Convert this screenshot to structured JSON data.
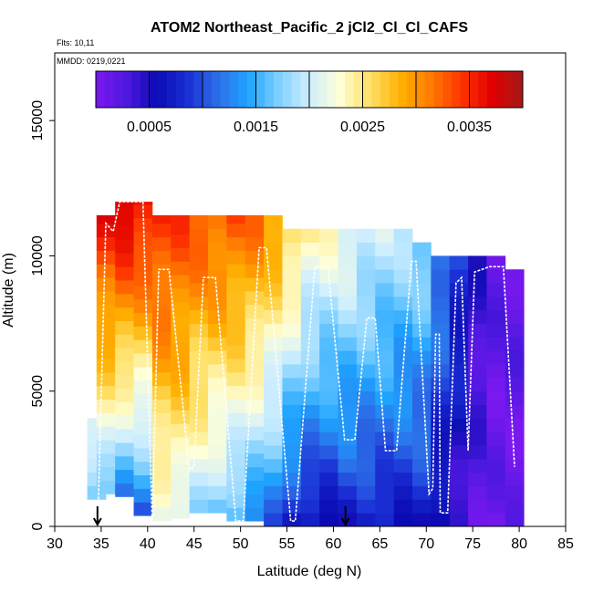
{
  "chart_data": {
    "type": "heatmap",
    "title": "ATOM2 Northeast_Pacific_2 jCl2_Cl_Cl_CAFS",
    "flights_label": "Flts: 10,11",
    "mmdd_label": "MMDD: 0219,0221",
    "xlabel": "Latitude (deg N)",
    "ylabel": "Altitude (m)",
    "xlim": [
      30,
      85
    ],
    "ylim": [
      0,
      17500
    ],
    "x_ticks": [
      "30",
      "35",
      "40",
      "45",
      "50",
      "55",
      "60",
      "65",
      "70",
      "75",
      "80",
      "85"
    ],
    "y_ticks": [
      "0",
      "5000",
      "10000",
      "15000"
    ],
    "colorbar": {
      "min": 0.0,
      "max": 0.004,
      "tick_labels": [
        "0.0005",
        "0.0015",
        "0.0025",
        "0.0035"
      ],
      "tick_values": [
        0.0005,
        0.0015,
        0.0025,
        0.0035
      ],
      "colors": [
        "#7b18f0",
        "#4f18e0",
        "#0b0bb4",
        "#1a2fd4",
        "#2c6ee8",
        "#1ea4ff",
        "#7fd0ff",
        "#cfeeff",
        "#ffffd6",
        "#ffe066",
        "#ffb000",
        "#ff7a00",
        "#ff3300",
        "#e00000",
        "#a41818"
      ]
    },
    "columns": [
      {
        "lat": 34.5,
        "bottom": 1000,
        "top": 4000,
        "low": 0.0015,
        "high": 0.0022
      },
      {
        "lat": 35.5,
        "bottom": 1200,
        "top": 11500,
        "low": 0.0016,
        "high": 0.0036
      },
      {
        "lat": 37.5,
        "bottom": 1100,
        "top": 12000,
        "low": 0.0012,
        "high": 0.0038
      },
      {
        "lat": 39.5,
        "bottom": 400,
        "top": 12000,
        "low": 0.001,
        "high": 0.0037
      },
      {
        "lat": 41.5,
        "bottom": 200,
        "top": 11500,
        "low": 0.002,
        "high": 0.0035
      },
      {
        "lat": 43.5,
        "bottom": 300,
        "top": 11500,
        "low": 0.002,
        "high": 0.0034
      },
      {
        "lat": 45.5,
        "bottom": 500,
        "top": 11500,
        "low": 0.0018,
        "high": 0.0033
      },
      {
        "lat": 47.5,
        "bottom": 500,
        "top": 11500,
        "low": 0.0016,
        "high": 0.0033
      },
      {
        "lat": 49.5,
        "bottom": 200,
        "top": 11500,
        "low": 0.0014,
        "high": 0.0033
      },
      {
        "lat": 51.5,
        "bottom": 200,
        "top": 11500,
        "low": 0.0012,
        "high": 0.0032
      },
      {
        "lat": 53.5,
        "bottom": 0,
        "top": 11500,
        "low": 0.001,
        "high": 0.003
      },
      {
        "lat": 55.5,
        "bottom": 0,
        "top": 11000,
        "low": 0.0006,
        "high": 0.0027
      },
      {
        "lat": 57.5,
        "bottom": 0,
        "top": 11000,
        "low": 0.0005,
        "high": 0.0024
      },
      {
        "lat": 59.5,
        "bottom": 0,
        "top": 11000,
        "low": 0.0005,
        "high": 0.0023
      },
      {
        "lat": 61.5,
        "bottom": 0,
        "top": 11000,
        "low": 0.0006,
        "high": 0.0022
      },
      {
        "lat": 63.5,
        "bottom": 0,
        "top": 11000,
        "low": 0.0006,
        "high": 0.0021
      },
      {
        "lat": 65.5,
        "bottom": 0,
        "top": 11000,
        "low": 0.0006,
        "high": 0.002
      },
      {
        "lat": 67.5,
        "bottom": 0,
        "top": 11000,
        "low": 0.0006,
        "high": 0.0019
      },
      {
        "lat": 69.5,
        "bottom": 0,
        "top": 10500,
        "low": 0.0006,
        "high": 0.0018
      },
      {
        "lat": 71.5,
        "bottom": 0,
        "top": 10000,
        "low": 0.0004,
        "high": 0.0013
      },
      {
        "lat": 73.5,
        "bottom": 0,
        "top": 10000,
        "low": 0.0003,
        "high": 0.0009
      },
      {
        "lat": 75.5,
        "bottom": 0,
        "top": 10000,
        "low": 0.0002,
        "high": 0.0004
      },
      {
        "lat": 77.5,
        "bottom": 0,
        "top": 10000,
        "low": 0.0001,
        "high": 0.0002
      },
      {
        "lat": 79.5,
        "bottom": 0,
        "top": 9500,
        "low": 0.0001,
        "high": 0.0002
      }
    ],
    "flight_track": [
      [
        34.7,
        1000
      ],
      [
        35.5,
        11200
      ],
      [
        36.3,
        10900
      ],
      [
        37.0,
        12000
      ],
      [
        39.5,
        12000
      ],
      [
        40.5,
        200
      ],
      [
        41.2,
        9500
      ],
      [
        42.3,
        9500
      ],
      [
        44.5,
        2100
      ],
      [
        45.0,
        2200
      ],
      [
        46.0,
        9200
      ],
      [
        47.3,
        9200
      ],
      [
        49.5,
        200
      ],
      [
        50.3,
        200
      ],
      [
        52.0,
        10300
      ],
      [
        52.8,
        10300
      ],
      [
        55.4,
        200
      ],
      [
        55.9,
        200
      ],
      [
        58.0,
        9600
      ],
      [
        59.4,
        9600
      ],
      [
        61.2,
        3200
      ],
      [
        62.3,
        3200
      ],
      [
        63.6,
        7700
      ],
      [
        64.5,
        7700
      ],
      [
        65.6,
        2800
      ],
      [
        66.8,
        2800
      ],
      [
        68.4,
        9800
      ],
      [
        68.9,
        9800
      ],
      [
        70.3,
        1200
      ],
      [
        70.7,
        1400
      ],
      [
        71.0,
        7100
      ],
      [
        71.4,
        7100
      ],
      [
        71.5,
        500
      ],
      [
        72.3,
        500
      ],
      [
        73.2,
        9000
      ],
      [
        73.8,
        9200
      ],
      [
        74.5,
        2800
      ],
      [
        75.2,
        9400
      ],
      [
        76.8,
        9600
      ],
      [
        78.3,
        9600
      ],
      [
        79.5,
        2200
      ]
    ],
    "arrows_at_lat": [
      34.6,
      61.3
    ]
  }
}
